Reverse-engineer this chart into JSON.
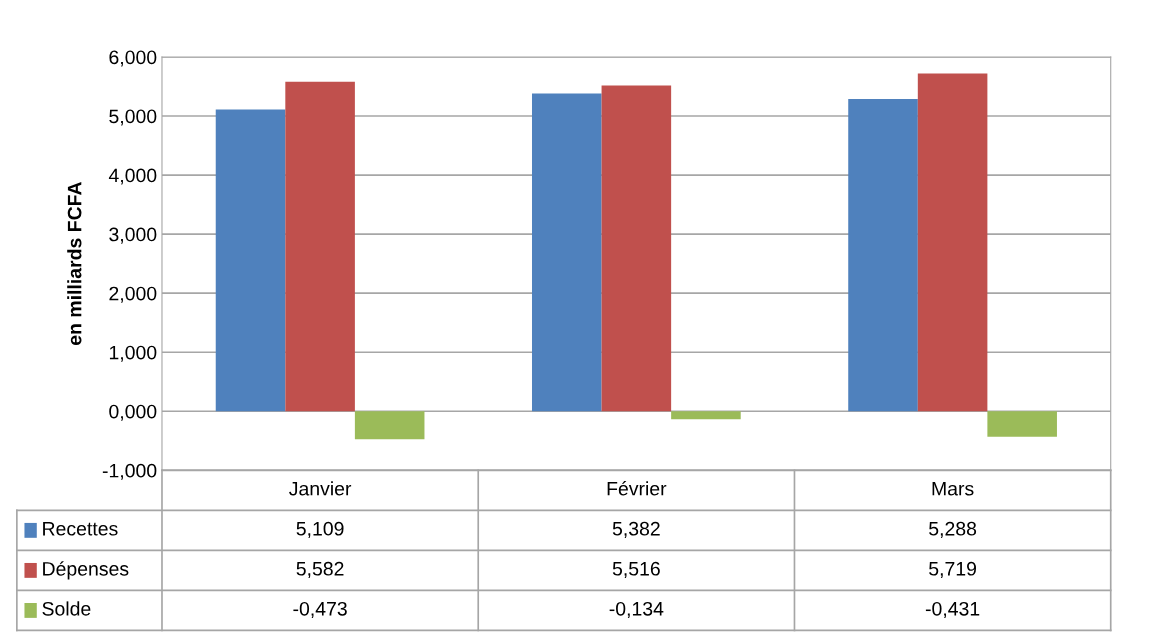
{
  "chart_data": {
    "type": "bar",
    "ylabel": "en milliards FCFA",
    "categories": [
      "Janvier",
      "Février",
      "Mars"
    ],
    "series": [
      {
        "name": "Recettes",
        "color": "#4f81bd",
        "values": [
          5.109,
          5.382,
          5.288
        ],
        "value_labels": [
          "5,109",
          "5,382",
          "5,288"
        ]
      },
      {
        "name": "Dépenses",
        "color": "#c0504d",
        "values": [
          5.582,
          5.516,
          5.719
        ],
        "value_labels": [
          "5,582",
          "5,516",
          "5,719"
        ]
      },
      {
        "name": "Solde",
        "color": "#9bbb59",
        "values": [
          -0.473,
          -0.134,
          -0.431
        ],
        "value_labels": [
          "-0,473",
          "-0,134",
          "-0,431"
        ]
      }
    ],
    "ylim": [
      -1,
      6
    ],
    "yticks": [
      {
        "value": -1,
        "label": "-1,000"
      },
      {
        "value": 0,
        "label": "0,000"
      },
      {
        "value": 1,
        "label": "1,000"
      },
      {
        "value": 2,
        "label": "2,000"
      },
      {
        "value": 3,
        "label": "3,000"
      },
      {
        "value": 4,
        "label": "4,000"
      },
      {
        "value": 5,
        "label": "5,000"
      },
      {
        "value": 6,
        "label": "6,000"
      }
    ],
    "grid": "y",
    "legend": "bottom"
  }
}
